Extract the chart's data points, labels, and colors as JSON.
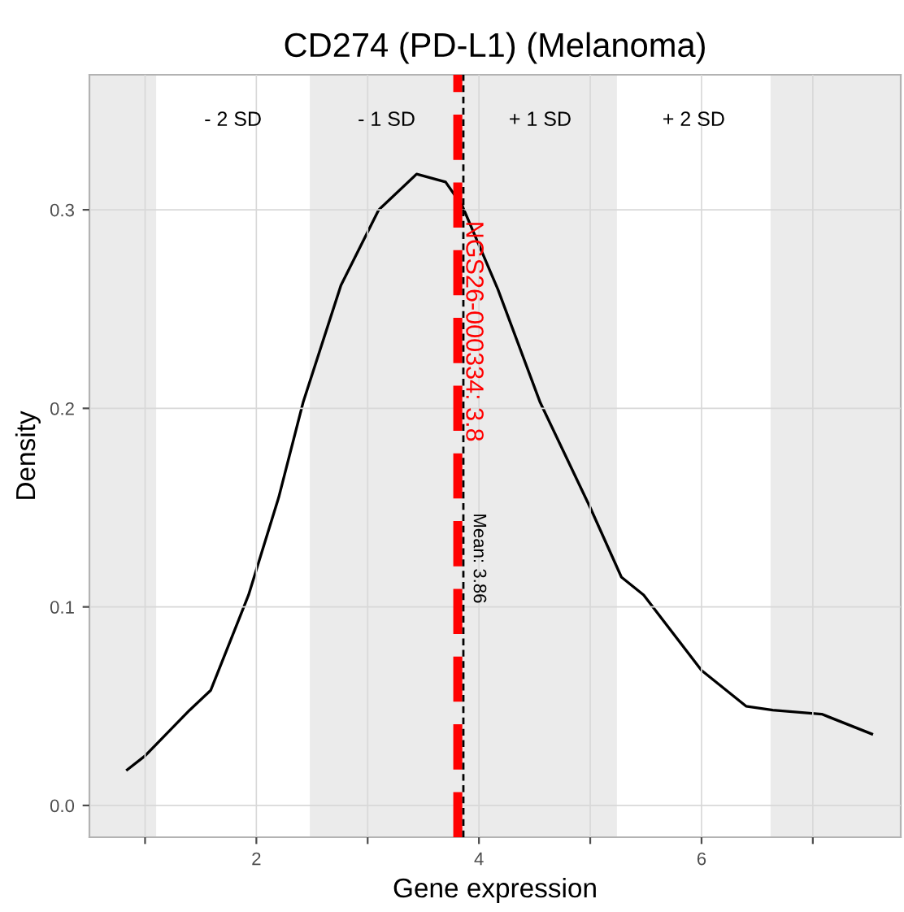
{
  "chart_data": {
    "type": "line",
    "title": "CD274 (PD-L1) (Melanoma)",
    "xlabel": "Gene expression",
    "ylabel": "Density",
    "x": [
      0.84,
      1.0,
      1.4,
      1.59,
      1.93,
      2.2,
      2.42,
      2.76,
      3.1,
      3.44,
      3.7,
      3.85,
      4.17,
      4.55,
      5.0,
      5.28,
      5.48,
      6.0,
      6.4,
      6.64,
      7.08,
      7.53
    ],
    "series": [
      {
        "color": "#000000",
        "values": [
          0.018,
          0.025,
          0.048,
          0.058,
          0.106,
          0.155,
          0.203,
          0.262,
          0.3,
          0.318,
          0.314,
          0.302,
          0.26,
          0.203,
          0.15,
          0.115,
          0.106,
          0.068,
          0.05,
          0.048,
          0.046,
          0.036
        ]
      }
    ],
    "xlim": [
      0.5,
      7.79
    ],
    "ylim": [
      -0.016,
      0.368
    ],
    "xticks": [
      {
        "value": 1,
        "label": null
      },
      2,
      {
        "value": 3,
        "label": null
      },
      4,
      {
        "value": 5,
        "label": null
      },
      6,
      {
        "value": 7,
        "label": null
      }
    ],
    "yticks": [
      {
        "value": 0,
        "label": "0.0"
      },
      0.1,
      0.2,
      0.3
    ],
    "bands": [
      {
        "axis": "x",
        "from": 0.5,
        "to": 1.1,
        "color": "#ebebeb"
      },
      {
        "axis": "x",
        "from": 2.48,
        "to": 3.86,
        "label": "- 1 SD",
        "color": "#ebebeb"
      },
      {
        "axis": "x",
        "from": 3.86,
        "to": 5.24,
        "label": "+ 1 SD",
        "color": "#ebebeb"
      },
      {
        "axis": "x",
        "from": 6.62,
        "to": 7.79,
        "color": "#ebebeb"
      }
    ],
    "ref_lines": [
      {
        "axis": "x",
        "value": 3.81,
        "label": "NGS26-000334: 3.8",
        "color": "#ff0000",
        "line_style": "dashed"
      },
      {
        "axis": "x",
        "value": 3.86,
        "label": "Mean: 3.86",
        "color": "#000000",
        "line_style": "dashed"
      }
    ],
    "annotations": [
      "- 2 SD",
      "+ 2 SD"
    ],
    "grid": true,
    "legend": false
  }
}
